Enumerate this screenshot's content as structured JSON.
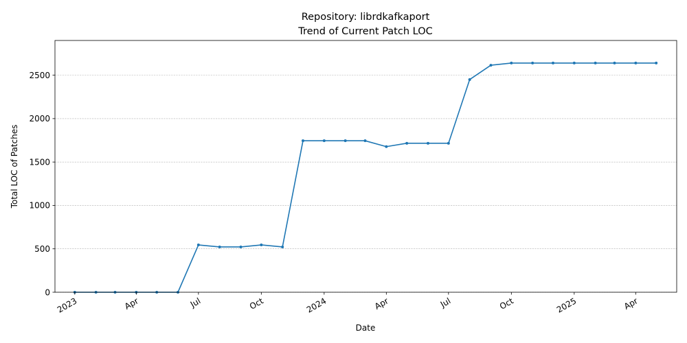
{
  "chart_data": {
    "type": "line",
    "title_line1": "Repository: librdkafkaport",
    "title_line2": "Trend of Current Patch LOC",
    "xlabel": "Date",
    "ylabel": "Total LOC of Patches",
    "ylim": [
      0,
      2900
    ],
    "xlim": [
      "2022-12-03",
      "2025-05-31"
    ],
    "y_ticks": [
      0,
      500,
      1000,
      1500,
      2000,
      2500
    ],
    "x_ticks": [
      {
        "date": "2023-01-01",
        "label": "2023"
      },
      {
        "date": "2023-04-01",
        "label": "Apr"
      },
      {
        "date": "2023-07-01",
        "label": "Jul"
      },
      {
        "date": "2023-10-01",
        "label": "Oct"
      },
      {
        "date": "2024-01-01",
        "label": "2024"
      },
      {
        "date": "2024-04-01",
        "label": "Apr"
      },
      {
        "date": "2024-07-01",
        "label": "Jul"
      },
      {
        "date": "2024-10-01",
        "label": "Oct"
      },
      {
        "date": "2025-01-01",
        "label": "2025"
      },
      {
        "date": "2025-04-01",
        "label": "Apr"
      }
    ],
    "grid": "horizontal-dashed",
    "color": "#1f77b4",
    "series": [
      {
        "points": [
          {
            "x": "2023-01-01",
            "y": 0
          },
          {
            "x": "2023-02-01",
            "y": 0
          },
          {
            "x": "2023-03-01",
            "y": 0
          },
          {
            "x": "2023-04-01",
            "y": 0
          },
          {
            "x": "2023-05-01",
            "y": 0
          },
          {
            "x": "2023-06-01",
            "y": 0
          },
          {
            "x": "2023-07-01",
            "y": 545
          },
          {
            "x": "2023-08-01",
            "y": 522
          },
          {
            "x": "2023-09-01",
            "y": 522
          },
          {
            "x": "2023-10-01",
            "y": 545
          },
          {
            "x": "2023-11-01",
            "y": 522
          },
          {
            "x": "2023-12-01",
            "y": 1745
          },
          {
            "x": "2024-01-01",
            "y": 1745
          },
          {
            "x": "2024-02-01",
            "y": 1745
          },
          {
            "x": "2024-03-01",
            "y": 1745
          },
          {
            "x": "2024-04-01",
            "y": 1677
          },
          {
            "x": "2024-05-01",
            "y": 1716
          },
          {
            "x": "2024-06-01",
            "y": 1716
          },
          {
            "x": "2024-07-01",
            "y": 1716
          },
          {
            "x": "2024-08-01",
            "y": 2450
          },
          {
            "x": "2024-09-01",
            "y": 2615
          },
          {
            "x": "2024-10-01",
            "y": 2640
          },
          {
            "x": "2024-11-01",
            "y": 2640
          },
          {
            "x": "2024-12-01",
            "y": 2640
          },
          {
            "x": "2025-01-01",
            "y": 2640
          },
          {
            "x": "2025-02-01",
            "y": 2640
          },
          {
            "x": "2025-03-01",
            "y": 2640
          },
          {
            "x": "2025-04-01",
            "y": 2640
          },
          {
            "x": "2025-05-01",
            "y": 2640
          }
        ]
      }
    ]
  }
}
